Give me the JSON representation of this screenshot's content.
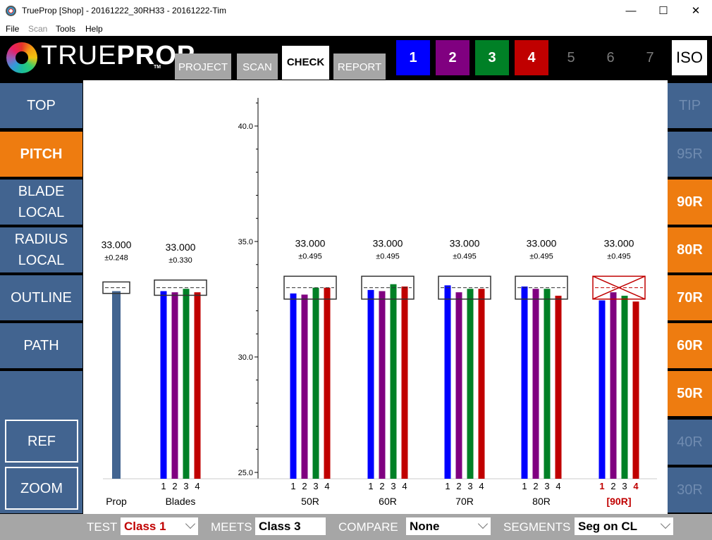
{
  "window": {
    "title": "TrueProp [Shop] - 20161222_30RH33 - 20161222-Tim",
    "minimize": "—",
    "maximize": "☐",
    "close": "✕"
  },
  "menu": [
    {
      "label": "File",
      "enabled": true
    },
    {
      "label": "Scan",
      "enabled": false
    },
    {
      "label": "Tools",
      "enabled": true
    },
    {
      "label": "Help",
      "enabled": true
    }
  ],
  "logo": {
    "thin": "TRUE",
    "bold": "PROP",
    "tm": "TM"
  },
  "tabs": [
    {
      "label": "PROJECT",
      "active": false
    },
    {
      "label": "SCAN",
      "active": false
    },
    {
      "label": "CHECK",
      "active": true
    },
    {
      "label": "REPORT",
      "active": false
    }
  ],
  "blades": [
    {
      "label": "1",
      "color": "#0000ff",
      "on": true
    },
    {
      "label": "2",
      "color": "#800080",
      "on": true
    },
    {
      "label": "3",
      "color": "#008026",
      "on": true
    },
    {
      "label": "4",
      "color": "#c00000",
      "on": true
    },
    {
      "label": "5",
      "on": false
    },
    {
      "label": "6",
      "on": false
    },
    {
      "label": "7",
      "on": false
    }
  ],
  "iso_label": "ISO",
  "left_nav": [
    {
      "label": "TOP",
      "state": "normal"
    },
    {
      "label": "PITCH",
      "state": "active"
    },
    {
      "label": "BLADE\nLOCAL",
      "state": "normal"
    },
    {
      "label": "RADIUS\nLOCAL",
      "state": "normal"
    },
    {
      "label": "OUTLINE",
      "state": "normal"
    },
    {
      "label": "PATH",
      "state": "normal"
    },
    {
      "label": "REF",
      "state": "outlined"
    },
    {
      "label": "ZOOM",
      "state": "outlined"
    }
  ],
  "right_nav": [
    {
      "label": "TIP",
      "state": "dim"
    },
    {
      "label": "95R",
      "state": "dim"
    },
    {
      "label": "90R",
      "state": "active"
    },
    {
      "label": "80R",
      "state": "active"
    },
    {
      "label": "70R",
      "state": "active"
    },
    {
      "label": "60R",
      "state": "active"
    },
    {
      "label": "50R",
      "state": "active"
    },
    {
      "label": "40R",
      "state": "dim"
    },
    {
      "label": "30R",
      "state": "dim"
    }
  ],
  "bottom": {
    "test_label": "TEST",
    "test_value": "Class 1",
    "meets_label": "MEETS",
    "meets_value": "Class 3",
    "compare_label": "COMPARE",
    "compare_value": "None",
    "segments_label": "SEGMENTS",
    "segments_value": "Seg on CL"
  },
  "chart_data": {
    "type": "bar",
    "y_ticks": [
      "40.0",
      "35.0",
      "30.0",
      "25.0"
    ],
    "ylim": [
      25,
      41.2
    ],
    "blade_numbers": [
      "1",
      "2",
      "3",
      "4"
    ],
    "groups": [
      {
        "label": "Prop",
        "kind": "prop",
        "target": "33.000",
        "tol": "±0.248",
        "tol_value": 0.248,
        "values": [
          32.85
        ],
        "fail": false
      },
      {
        "label": "Blades",
        "kind": "blades",
        "target": "33.000",
        "tol": "±0.330",
        "tol_value": 0.33,
        "values": [
          32.85,
          32.8,
          32.95,
          32.8
        ],
        "fail": false
      },
      {
        "label": "50R",
        "kind": "radius",
        "target": "33.000",
        "tol": "±0.495",
        "tol_value": 0.495,
        "values": [
          32.75,
          32.7,
          33.0,
          33.0
        ],
        "fail": false
      },
      {
        "label": "60R",
        "kind": "radius",
        "target": "33.000",
        "tol": "±0.495",
        "tol_value": 0.495,
        "values": [
          32.9,
          32.85,
          33.15,
          33.05
        ],
        "fail": false
      },
      {
        "label": "70R",
        "kind": "radius",
        "target": "33.000",
        "tol": "±0.495",
        "tol_value": 0.495,
        "values": [
          33.1,
          32.8,
          32.95,
          32.95
        ],
        "fail": false
      },
      {
        "label": "80R",
        "kind": "radius",
        "target": "33.000",
        "tol": "±0.495",
        "tol_value": 0.495,
        "values": [
          33.05,
          32.95,
          32.95,
          32.65
        ],
        "fail": false
      },
      {
        "label": "[90R]",
        "kind": "radius",
        "target": "33.000",
        "tol": "±0.495",
        "tol_value": 0.495,
        "values": [
          32.45,
          32.8,
          32.65,
          32.4
        ],
        "fail": true,
        "failed_blades": [
          0,
          3
        ]
      }
    ],
    "colors": {
      "blade1": "#0000ff",
      "blade2": "#800080",
      "blade3": "#008026",
      "blade4": "#c00000",
      "prop": "#426490",
      "fail": "#c00000"
    }
  }
}
